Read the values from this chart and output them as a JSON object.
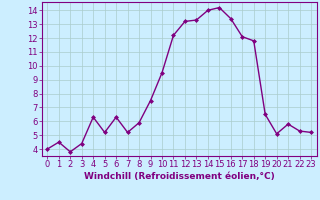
{
  "x": [
    0,
    1,
    2,
    3,
    4,
    5,
    6,
    7,
    8,
    9,
    10,
    11,
    12,
    13,
    14,
    15,
    16,
    17,
    18,
    19,
    20,
    21,
    22,
    23
  ],
  "y": [
    4.0,
    4.5,
    3.8,
    4.4,
    6.3,
    5.2,
    6.3,
    5.2,
    5.9,
    7.5,
    9.5,
    12.2,
    13.2,
    13.3,
    14.0,
    14.2,
    13.4,
    12.1,
    11.8,
    6.5,
    5.1,
    5.8,
    5.3,
    5.2
  ],
  "line_color": "#800080",
  "marker": "D",
  "marker_size": 2.0,
  "linewidth": 1.0,
  "xlabel": "Windchill (Refroidissement éolien,°C)",
  "xticks": [
    0,
    1,
    2,
    3,
    4,
    5,
    6,
    7,
    8,
    9,
    10,
    11,
    12,
    13,
    14,
    15,
    16,
    17,
    18,
    19,
    20,
    21,
    22,
    23
  ],
  "yticks": [
    4,
    5,
    6,
    7,
    8,
    9,
    10,
    11,
    12,
    13,
    14
  ],
  "ylim": [
    3.5,
    14.6
  ],
  "xlim": [
    -0.5,
    23.5
  ],
  "background_color": "#cceeff",
  "grid_color": "#aacccc",
  "tick_color": "#800080",
  "label_color": "#800080",
  "font_size_xlabel": 6.5,
  "font_size_ticks": 6.0,
  "fig_width": 3.2,
  "fig_height": 2.0,
  "dpi": 100
}
